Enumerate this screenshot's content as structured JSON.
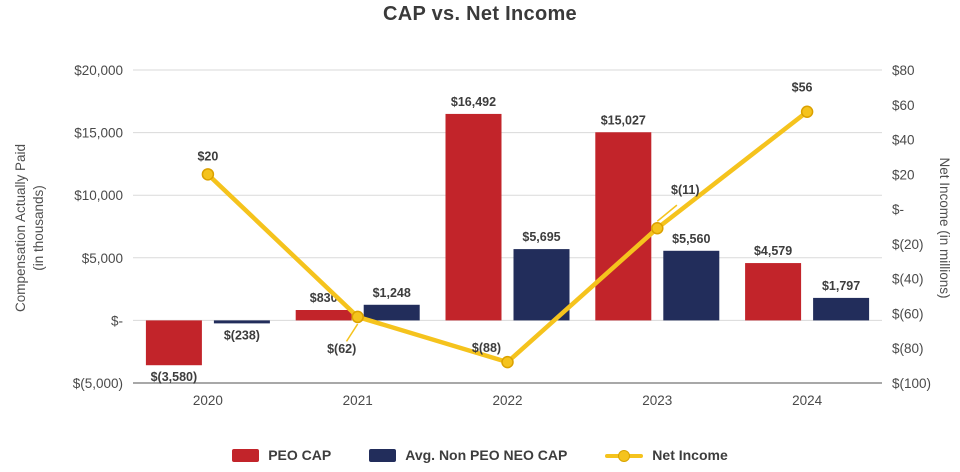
{
  "chart_data": {
    "type": "combo-bar-line",
    "title": "CAP vs. Net Income",
    "categories": [
      "2020",
      "2021",
      "2022",
      "2023",
      "2024"
    ],
    "bar_series": [
      {
        "name": "PEO CAP",
        "color": "#c2242a",
        "values": [
          -3580,
          830,
          16492,
          15027,
          4579
        ],
        "labels": [
          "$(3,580)",
          "$830",
          "$16,492",
          "$15,027",
          "$4,579"
        ]
      },
      {
        "name": "Avg. Non PEO NEO CAP",
        "color": "#222d5b",
        "values": [
          -238,
          1248,
          5695,
          5560,
          1797
        ],
        "labels": [
          "$(238)",
          "$1,248",
          "$5,695",
          "$5,560",
          "$1,797"
        ]
      }
    ],
    "line_series": {
      "name": "Net Income",
      "color": "#f5c31d",
      "marker_stroke": "#dba100",
      "values": [
        20,
        -62,
        -88,
        -11,
        56
      ],
      "labels": [
        "$20",
        "$(62)",
        "$(88)",
        "$(11)",
        "$56"
      ]
    },
    "left_axis": {
      "title_line1": "Compensation Actually Paid",
      "title_line2": "(in thousands)",
      "min": -5000,
      "max": 20000,
      "ticks": [
        20000,
        15000,
        10000,
        5000,
        0,
        -5000
      ],
      "tick_labels": [
        "$20,000",
        "$15,000",
        "$10,000",
        "$5,000",
        "$-",
        "$(5,000)"
      ]
    },
    "right_axis": {
      "title": "Net Income (in millions)",
      "min": -100,
      "max": 80,
      "ticks": [
        80,
        60,
        40,
        20,
        0,
        -20,
        -40,
        -60,
        -80,
        -100
      ],
      "tick_labels": [
        "$80",
        "$60",
        "$40",
        "$20",
        "$-",
        "$(20)",
        "$(40)",
        "$(60)",
        "$(80)",
        "$(100)"
      ]
    },
    "grid": true,
    "legend_position": "bottom"
  }
}
